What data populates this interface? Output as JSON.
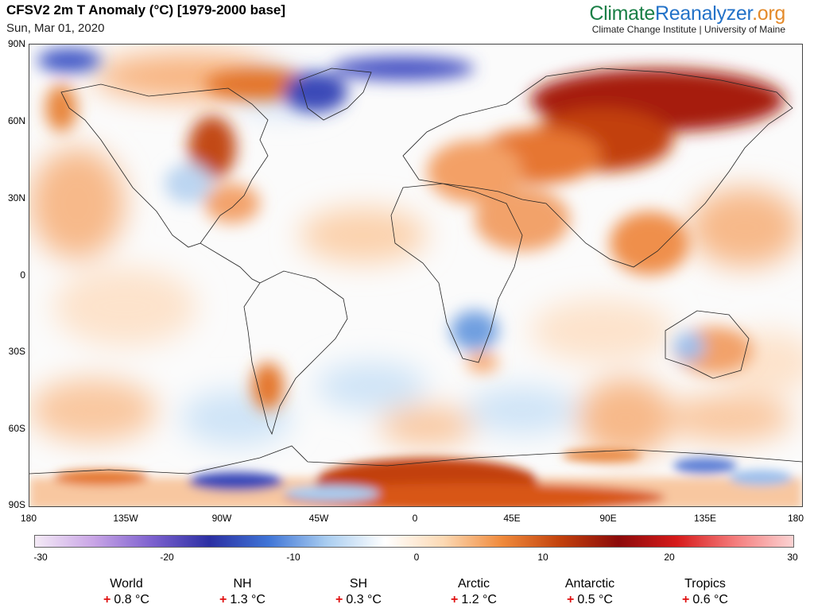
{
  "header": {
    "title": "CFSV2 2m T Anomaly (°C) [1979-2000 base]",
    "date": "Sun, Mar 01, 2020"
  },
  "brand": {
    "part1": "Climate",
    "part2": "Reanalyzer",
    "part3": ".org",
    "subtitle": "Climate Change Institute | University of Maine",
    "colors": {
      "climate": "#1a7f46",
      "reanalyzer": "#2372c8",
      "org": "#e48a2a"
    }
  },
  "map": {
    "projection": "equirectangular",
    "lat_labels": [
      "90N",
      "60N",
      "30N",
      "0",
      "30S",
      "60S",
      "90S"
    ],
    "lon_labels": [
      "180",
      "135W",
      "90W",
      "45W",
      "0",
      "45E",
      "90E",
      "135E",
      "180"
    ]
  },
  "colorbar": {
    "min": -30,
    "max": 30,
    "tick_labels": [
      "-30",
      "-20",
      "-10",
      "0",
      "10",
      "20",
      "30"
    ],
    "colors": [
      "#f4eaf6",
      "#c9a5e6",
      "#7d61cf",
      "#2b2fa3",
      "#3f74d6",
      "#a9cdf0",
      "#ffffff",
      "#fcd9b4",
      "#f08a3c",
      "#c2410c",
      "#8b0a0a",
      "#d61a1a",
      "#f47c7c",
      "#fbd3d3"
    ]
  },
  "stats": [
    {
      "name": "World",
      "sign": "+",
      "value": "0.8 °C"
    },
    {
      "name": "NH",
      "sign": "+",
      "value": "1.3 °C"
    },
    {
      "name": "SH",
      "sign": "+",
      "value": "0.3 °C"
    },
    {
      "name": "Arctic",
      "sign": "+",
      "value": "1.2 °C"
    },
    {
      "name": "Antarctic",
      "sign": "+",
      "value": "0.5 °C"
    },
    {
      "name": "Tropics",
      "sign": "+",
      "value": "0.6 °C"
    }
  ]
}
